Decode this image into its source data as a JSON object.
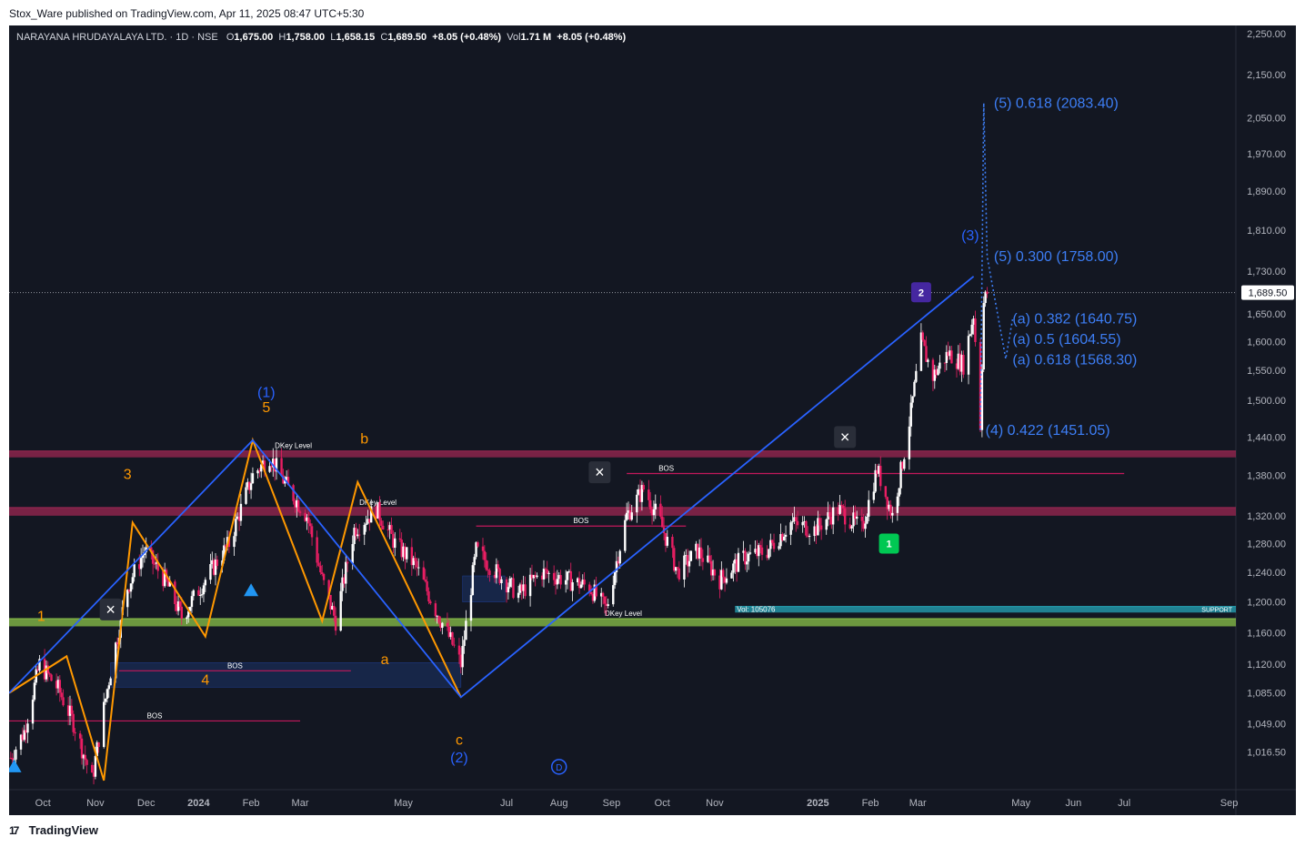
{
  "header": {
    "published": "Stox_Ware published on TradingView.com, Apr 11, 2025 08:47 UTC+5:30"
  },
  "footer": {
    "brand": "TradingView",
    "logo_glyph": "17"
  },
  "legend": {
    "symbol": "NARAYANA HRUDAYALAYA LTD. · 1D · NSE",
    "o_label": "O",
    "o": "1,675.00",
    "h_label": "H",
    "h": "1,758.00",
    "l_label": "L",
    "l": "1,658.15",
    "c_label": "C",
    "c": "1,689.50",
    "change": "+8.05 (+0.48%)",
    "vol_label": "Vol",
    "vol": "1.71 M",
    "vol_change": "+8.05 (+0.48%)"
  },
  "colors": {
    "background": "#131722",
    "up_candle": "#ffffff",
    "down_candle": "#e91e63",
    "wave_blue": "#2962ff",
    "wave_orange": "#ff9800",
    "zone_red": "#9c2752",
    "zone_green": "#8bc34a",
    "support_cyan": "#26a6b8",
    "fib_text": "#3d7ef5"
  },
  "chart_data": {
    "type": "candlestick",
    "y_axis": {
      "ticks": [
        2250,
        2150,
        2050,
        1970,
        1890,
        1810,
        1730,
        1650,
        1600,
        1550,
        1500,
        1440,
        1380,
        1320,
        1280,
        1240,
        1200,
        1160,
        1120,
        1085,
        1049,
        1016.5
      ],
      "tick_labels": [
        "2,250.00",
        "2,150.00",
        "2,050.00",
        "1,970.00",
        "1,890.00",
        "1,810.00",
        "1,730.00",
        "1,650.00",
        "1,600.00",
        "1,550.00",
        "1,500.00",
        "1,440.00",
        "1,380.00",
        "1,320.00",
        "1,280.00",
        "1,240.00",
        "1,200.00",
        "1,160.00",
        "1,120.00",
        "1,085.00",
        "1,049.00",
        "1,016.50"
      ],
      "scale": "log",
      "range": [
        975,
        2270
      ]
    },
    "x_axis": {
      "range": [
        "2023-09-11",
        "2025-09-05"
      ],
      "ticks": [
        {
          "date": "2023-10-01",
          "label": "Oct"
        },
        {
          "date": "2023-11-01",
          "label": "Nov"
        },
        {
          "date": "2023-12-01",
          "label": "Dec"
        },
        {
          "date": "2024-01-01",
          "label": "2024"
        },
        {
          "date": "2024-02-01",
          "label": "Feb"
        },
        {
          "date": "2024-03-01",
          "label": "Mar"
        },
        {
          "date": "2024-05-01",
          "label": "May"
        },
        {
          "date": "2024-07-01",
          "label": "Jul"
        },
        {
          "date": "2024-08-01",
          "label": "Aug"
        },
        {
          "date": "2024-09-01",
          "label": "Sep"
        },
        {
          "date": "2024-10-01",
          "label": "Oct"
        },
        {
          "date": "2024-11-01",
          "label": "Nov"
        },
        {
          "date": "2025-01-01",
          "label": "2025"
        },
        {
          "date": "2025-02-01",
          "label": "Feb"
        },
        {
          "date": "2025-03-01",
          "label": "Mar"
        },
        {
          "date": "2025-05-01",
          "label": "May"
        },
        {
          "date": "2025-06-01",
          "label": "Jun"
        },
        {
          "date": "2025-07-01",
          "label": "Jul"
        },
        {
          "date": "2025-09-01",
          "label": "Sep"
        }
      ]
    },
    "last_price": 1689.5,
    "last_price_label": "1,689.50",
    "price_path": [
      [
        "2023-09-12",
        1010
      ],
      [
        "2023-09-20",
        1040
      ],
      [
        "2023-09-29",
        1120
      ],
      [
        "2023-10-10",
        1090
      ],
      [
        "2023-10-19",
        1050
      ],
      [
        "2023-10-30",
        985
      ],
      [
        "2023-11-08",
        1090
      ],
      [
        "2023-11-20",
        1220
      ],
      [
        "2023-11-30",
        1270
      ],
      [
        "2023-12-12",
        1230
      ],
      [
        "2023-12-22",
        1180
      ],
      [
        "2024-01-05",
        1230
      ],
      [
        "2024-01-19",
        1280
      ],
      [
        "2024-02-02",
        1380
      ],
      [
        "2024-02-12",
        1410
      ],
      [
        "2024-02-23",
        1360
      ],
      [
        "2024-03-05",
        1320
      ],
      [
        "2024-03-14",
        1230
      ],
      [
        "2024-03-22",
        1175
      ],
      [
        "2024-04-02",
        1300
      ],
      [
        "2024-04-15",
        1330
      ],
      [
        "2024-04-26",
        1280
      ],
      [
        "2024-05-08",
        1250
      ],
      [
        "2024-05-20",
        1190
      ],
      [
        "2024-05-29",
        1150
      ],
      [
        "2024-06-04",
        1120
      ],
      [
        "2024-06-13",
        1270
      ],
      [
        "2024-06-25",
        1240
      ],
      [
        "2024-07-08",
        1210
      ],
      [
        "2024-07-22",
        1240
      ],
      [
        "2024-08-05",
        1230
      ],
      [
        "2024-08-19",
        1220
      ],
      [
        "2024-08-29",
        1190
      ],
      [
        "2024-09-10",
        1320
      ],
      [
        "2024-09-20",
        1360
      ],
      [
        "2024-09-30",
        1310
      ],
      [
        "2024-10-10",
        1240
      ],
      [
        "2024-10-22",
        1270
      ],
      [
        "2024-11-04",
        1230
      ],
      [
        "2024-11-18",
        1260
      ],
      [
        "2024-12-02",
        1270
      ],
      [
        "2024-12-16",
        1310
      ],
      [
        "2024-12-30",
        1300
      ],
      [
        "2025-01-13",
        1330
      ],
      [
        "2025-01-27",
        1300
      ],
      [
        "2025-02-05",
        1390
      ],
      [
        "2025-02-14",
        1320
      ],
      [
        "2025-02-20",
        1400
      ],
      [
        "2025-02-25",
        1480
      ],
      [
        "2025-03-03",
        1600
      ],
      [
        "2025-03-10",
        1540
      ],
      [
        "2025-03-19",
        1580
      ],
      [
        "2025-03-28",
        1560
      ],
      [
        "2025-04-03",
        1650
      ],
      [
        "2025-04-07",
        1460
      ],
      [
        "2025-04-09",
        1670
      ],
      [
        "2025-04-11",
        1689.5
      ]
    ],
    "wave_blue": [
      [
        "2023-09-11",
        1085
      ],
      [
        "2024-02-02",
        1435
      ],
      [
        "2024-06-04",
        1080
      ],
      [
        "2025-04-03",
        1720
      ]
    ],
    "wave_orange": [
      [
        "2023-09-11",
        1085
      ],
      [
        "2023-10-15",
        1130
      ],
      [
        "2023-11-06",
        985
      ],
      [
        "2023-11-23",
        1310
      ],
      [
        "2024-01-05",
        1155
      ],
      [
        "2024-02-02",
        1435
      ],
      [
        "2024-03-14",
        1175
      ],
      [
        "2024-04-04",
        1370
      ],
      [
        "2024-06-04",
        1080
      ]
    ],
    "projection_dotted": [
      [
        "2025-04-07",
        1451.05
      ],
      [
        "2025-04-09",
        2083.4
      ],
      [
        "2025-04-11",
        1758.0
      ],
      [
        "2025-04-22",
        1570
      ],
      [
        "2025-04-26",
        1640
      ]
    ],
    "zones": [
      {
        "label": "DKey Level",
        "price_low": 1408,
        "price_high": 1418,
        "color": "#9c2752",
        "x_from": "2023-09-11"
      },
      {
        "label": "DKey Level",
        "price_low": 1320,
        "price_high": 1332,
        "color": "#9c2752",
        "x_from": "2023-09-11"
      },
      {
        "label": "DKey Level",
        "price_low": 1168,
        "price_high": 1178,
        "color": "#8bc34a",
        "x_from": "2023-09-11"
      },
      {
        "label": "Vol: 105076",
        "label2": "SUPPORT",
        "price_low": 1186,
        "price_high": 1194,
        "color": "#26a6b8",
        "x_from": "2024-11-13"
      }
    ],
    "bos_lines": [
      {
        "label": "BOS",
        "price": 1112,
        "x_from": "2023-11-15",
        "x_to": "2024-03-31"
      },
      {
        "label": "BOS",
        "price": 1052,
        "x_from": "2023-09-11",
        "x_to": "2024-03-01"
      },
      {
        "label": "BOS",
        "price": 1305,
        "x_from": "2024-06-13",
        "x_to": "2024-10-15"
      },
      {
        "label": "BOS",
        "price": 1383,
        "x_from": "2024-09-10",
        "x_to": "2025-07-01"
      }
    ],
    "wave_labels": [
      {
        "text": "1",
        "color": "#ff9800",
        "date": "2023-09-30",
        "price": 1175
      },
      {
        "text": "3",
        "color": "#ff9800",
        "date": "2023-11-20",
        "price": 1375
      },
      {
        "text": "4",
        "color": "#ff9800",
        "date": "2024-01-05",
        "price": 1095
      },
      {
        "text": "5",
        "color": "#ff9800",
        "date": "2024-02-10",
        "price": 1480
      },
      {
        "text": "(1)",
        "color": "#2962ff",
        "date": "2024-02-10",
        "price": 1505
      },
      {
        "text": "b",
        "color": "#ff9800",
        "date": "2024-04-08",
        "price": 1430
      },
      {
        "text": "a",
        "color": "#ff9800",
        "date": "2024-04-20",
        "price": 1120
      },
      {
        "text": "c",
        "color": "#ff9800",
        "date": "2024-06-03",
        "price": 1025
      },
      {
        "text": "(2)",
        "color": "#2962ff",
        "date": "2024-06-03",
        "price": 1005
      },
      {
        "text": "(3)",
        "color": "#2962ff",
        "date": "2025-04-01",
        "price": 1790
      }
    ],
    "fib_annotations": [
      {
        "text": "(5) 0.618 (2083.40)",
        "date": "2025-04-15",
        "price": 2083.4
      },
      {
        "text": "(5) 0.300 (1758.00)",
        "date": "2025-04-15",
        "price": 1758.0
      },
      {
        "text": "(a) 0.382 (1640.75)",
        "date": "2025-04-26",
        "price": 1640.75
      },
      {
        "text": "(a) 0.5 (1604.55)",
        "date": "2025-04-26",
        "price": 1604.55
      },
      {
        "text": "(a) 0.618 (1568.30)",
        "date": "2025-04-26",
        "price": 1568.3
      },
      {
        "text": "(4) 0.422 (1451.05)",
        "date": "2025-04-10",
        "price": 1451.05
      }
    ],
    "markers": [
      {
        "type": "signal",
        "text": "2",
        "color": "#4527a0",
        "date": "2025-03-03",
        "price": 1690
      },
      {
        "type": "signal",
        "text": "1",
        "color": "#00c853",
        "date": "2025-02-12",
        "price": 1280
      },
      {
        "type": "triangle-up",
        "color": "#2196f3",
        "date": "2023-09-14",
        "price": 1000
      },
      {
        "type": "triangle-up",
        "color": "#2196f3",
        "date": "2024-02-01",
        "price": 1215
      },
      {
        "type": "close-x",
        "text": "×",
        "date": "2023-11-10",
        "price": 1190
      },
      {
        "type": "close-x",
        "text": "×",
        "date": "2024-08-25",
        "price": 1385
      },
      {
        "type": "close-x",
        "text": "×",
        "date": "2025-01-17",
        "price": 1440
      },
      {
        "type": "circle-d",
        "text": "D",
        "color": "#2962ff",
        "date": "2024-08-01",
        "price": 1000
      }
    ],
    "title": "",
    "xlabel": "",
    "ylabel": ""
  }
}
